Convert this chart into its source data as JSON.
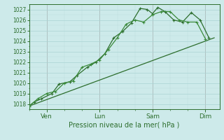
{
  "bg_color": "#cdeaea",
  "grid_major_color": "#aad4d4",
  "grid_minor_color": "#bbdddd",
  "line_color": "#2d6e2d",
  "line_color2": "#3a8a3a",
  "ylabel_text": "Pression niveau de la mer( hPa )",
  "yticks": [
    1018,
    1019,
    1020,
    1021,
    1022,
    1023,
    1024,
    1025,
    1026,
    1027
  ],
  "ylim": [
    1017.5,
    1027.5
  ],
  "day_labels": [
    "Ven",
    "Lun",
    "Sam",
    "Dim"
  ],
  "day_positions": [
    1,
    4,
    7,
    10
  ],
  "vline_color": "#bb9999",
  "series1_x": [
    0,
    0.3,
    0.7,
    1.3,
    1.7,
    2.3,
    2.7,
    3.3,
    3.8,
    4.3,
    4.8,
    5.3,
    5.8,
    6.3,
    6.7,
    7.0,
    7.3,
    7.7,
    8.2,
    8.7,
    9.2,
    9.7,
    10.2
  ],
  "series1_y": [
    1017.8,
    1018.2,
    1018.5,
    1019.0,
    1019.9,
    1020.1,
    1020.7,
    1021.5,
    1022.0,
    1022.8,
    1024.3,
    1024.9,
    1025.7,
    1027.1,
    1027.0,
    1026.6,
    1027.2,
    1026.8,
    1026.0,
    1025.8,
    1026.7,
    1026.0,
    1024.3
  ],
  "series2_x": [
    0,
    0.5,
    1.0,
    1.5,
    2.0,
    2.5,
    3.0,
    3.5,
    4.0,
    4.5,
    5.0,
    5.5,
    6.0,
    6.5,
    7.0,
    7.5,
    8.0,
    8.5,
    9.0,
    9.5,
    10.0
  ],
  "series2_y": [
    1017.8,
    1018.5,
    1019.0,
    1019.2,
    1020.0,
    1020.2,
    1021.5,
    1021.8,
    1022.2,
    1023.2,
    1024.3,
    1025.6,
    1026.0,
    1025.8,
    1026.5,
    1026.8,
    1026.8,
    1026.0,
    1025.8,
    1025.8,
    1024.2
  ],
  "trend_x": [
    0,
    10.5
  ],
  "trend_y": [
    1017.8,
    1024.3
  ],
  "vline_positions": [
    1,
    4,
    7,
    10
  ],
  "xlim": [
    0,
    10.8
  ],
  "ylabelsize": 5.5,
  "xlabelsize": 6.5,
  "xlabel_fontsize": 7.0
}
